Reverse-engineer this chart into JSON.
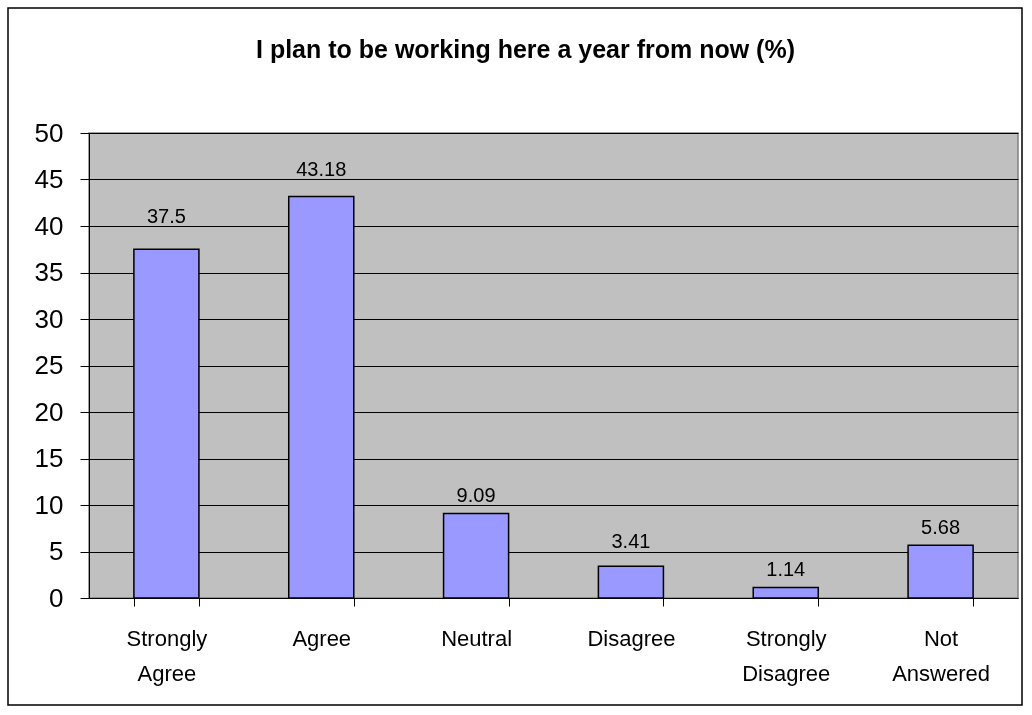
{
  "chart_data": {
    "type": "bar",
    "title": "I plan to be working here a year from now (%)",
    "categories": [
      "Strongly Agree",
      "Agree",
      "Neutral",
      "Disagree",
      "Strongly Disagree",
      "Not Answered"
    ],
    "values": [
      37.5,
      43.18,
      9.09,
      3.41,
      1.14,
      5.68
    ],
    "color": "#9999ff",
    "ylim": [
      0,
      50
    ],
    "yticks": [
      0,
      5,
      10,
      15,
      20,
      25,
      30,
      35,
      40,
      45,
      50
    ],
    "grid": "y",
    "data_labels": true
  }
}
